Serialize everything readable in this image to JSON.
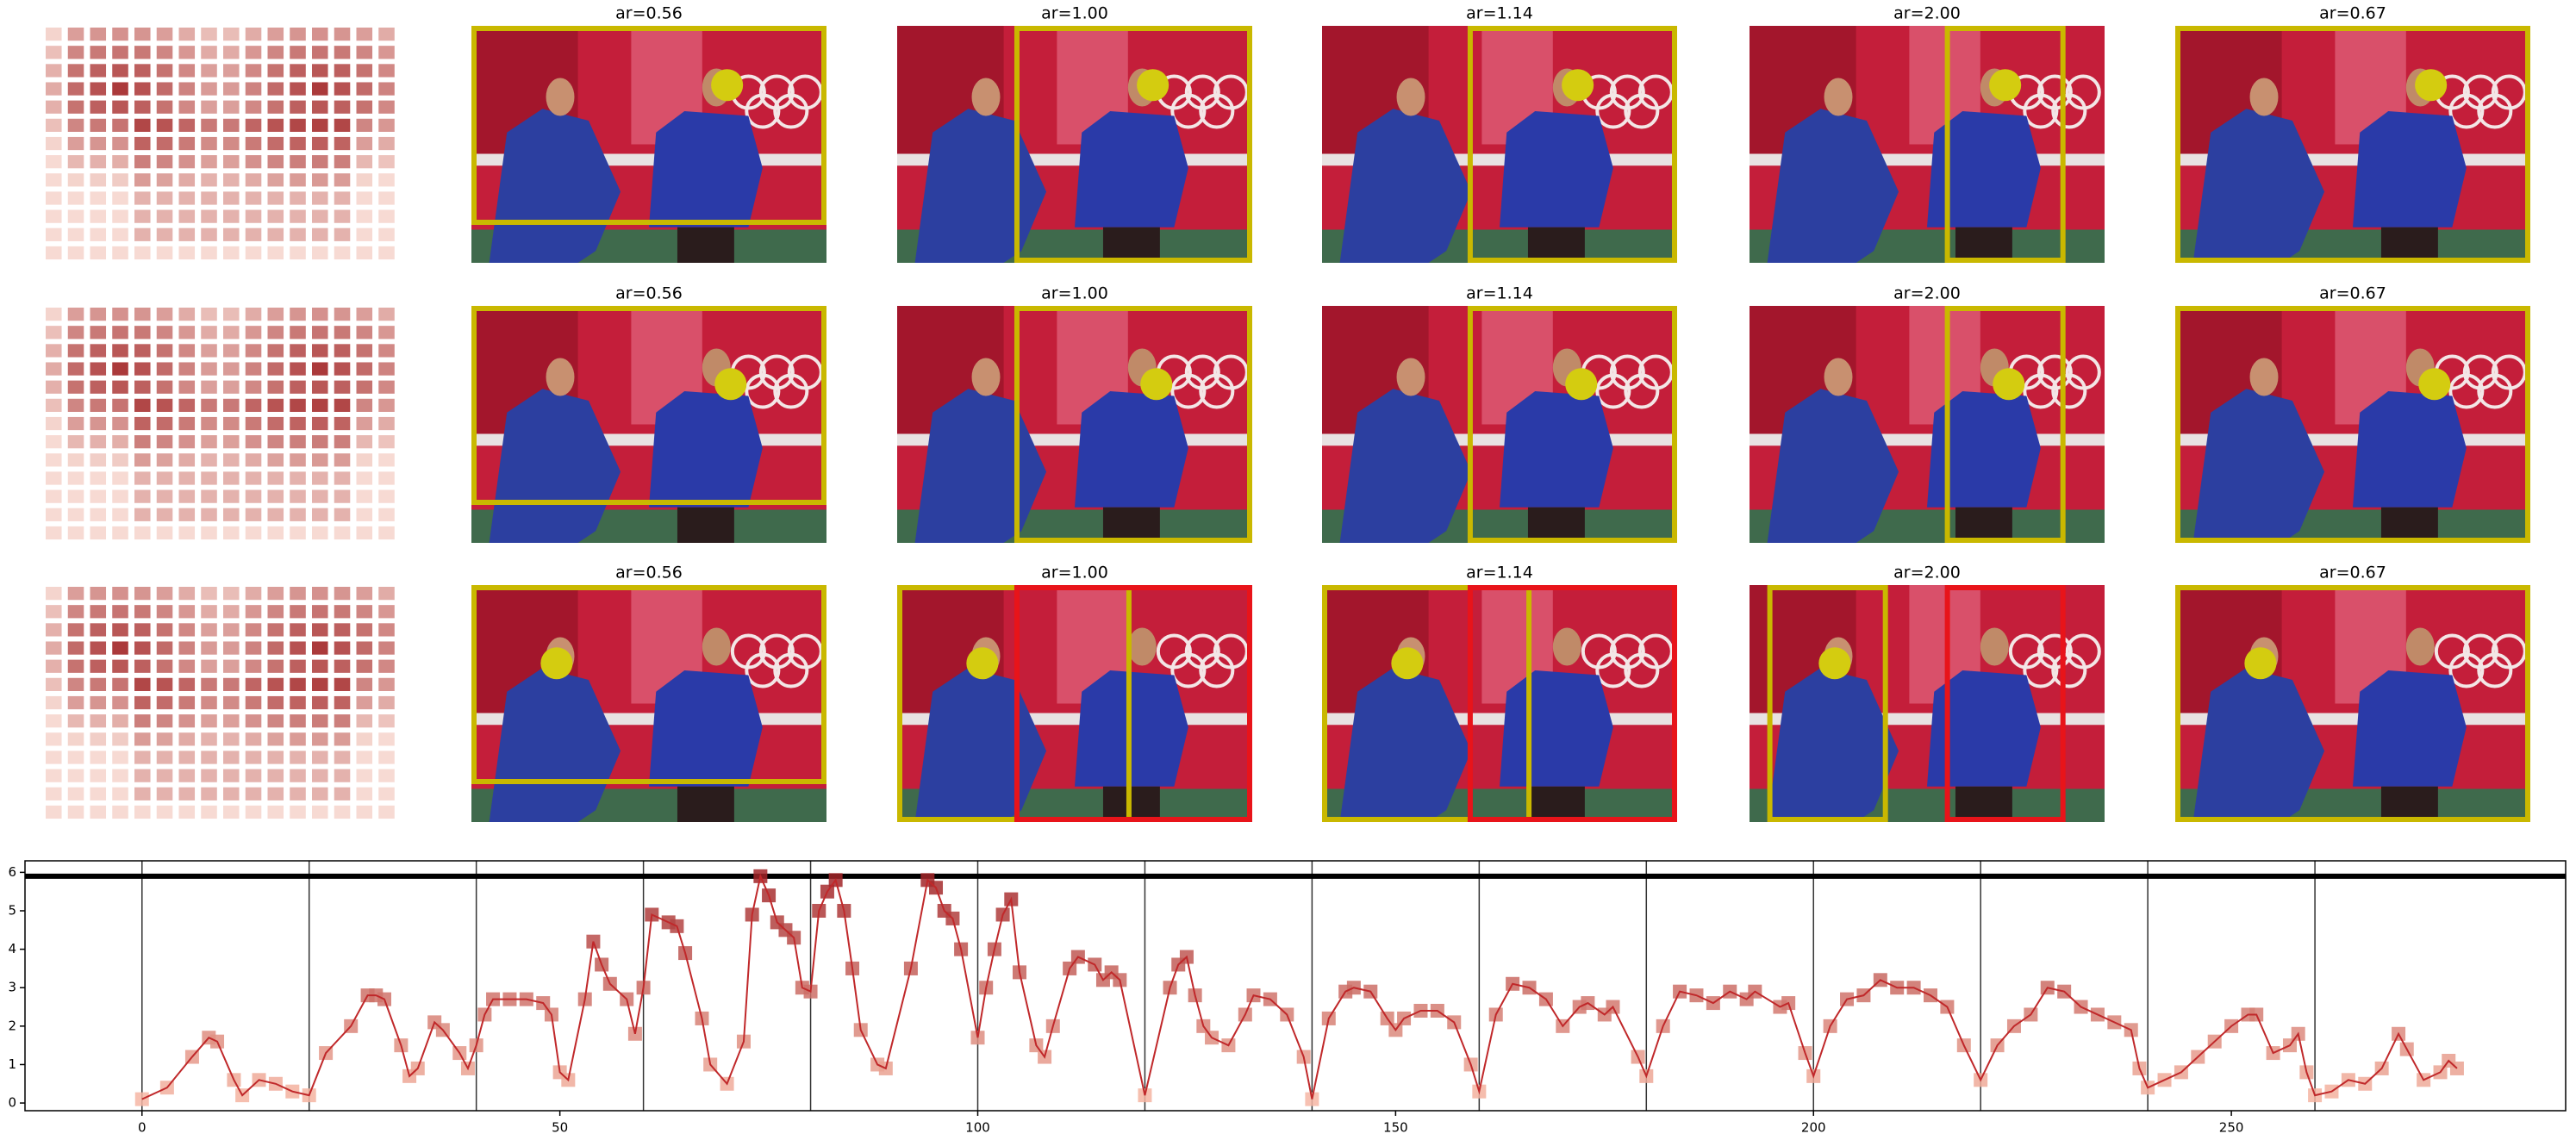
{
  "image_grid": {
    "rows": [
      [
        "ar=0.56",
        "ar=1.00",
        "ar=1.14",
        "ar=2.00",
        "ar=0.67"
      ],
      [
        "ar=0.56",
        "ar=1.00",
        "ar=1.14",
        "ar=2.00",
        "ar=0.67"
      ],
      [
        "ar=0.56",
        "ar=1.00",
        "ar=1.14",
        "ar=2.00",
        "ar=0.67"
      ]
    ]
  },
  "chart_data": {
    "type": "line",
    "x": [
      0,
      3,
      6,
      8,
      9,
      11,
      12,
      14,
      16,
      18,
      20,
      22,
      25,
      27,
      28,
      29,
      31,
      32,
      33,
      35,
      36,
      38,
      39,
      40,
      41,
      42,
      44,
      46,
      48,
      49,
      50,
      51,
      53,
      54,
      55,
      56,
      58,
      59,
      60,
      61,
      63,
      64,
      65,
      67,
      68,
      70,
      72,
      73,
      74,
      75,
      76,
      77,
      78,
      79,
      80,
      81,
      82,
      83,
      84,
      85,
      86,
      88,
      89,
      92,
      94,
      95,
      96,
      97,
      98,
      100,
      101,
      102,
      103,
      104,
      105,
      107,
      108,
      109,
      111,
      112,
      114,
      115,
      116,
      117,
      120,
      123,
      124,
      125,
      126,
      127,
      128,
      130,
      132,
      133,
      135,
      137,
      139,
      140,
      142,
      144,
      145,
      147,
      149,
      150,
      151,
      153,
      155,
      157,
      159,
      160,
      162,
      164,
      166,
      168,
      170,
      172,
      173,
      175,
      176,
      179,
      180,
      182,
      184,
      186,
      188,
      190,
      192,
      193,
      196,
      197,
      199,
      200,
      202,
      204,
      206,
      208,
      210,
      212,
      214,
      216,
      218,
      220,
      222,
      224,
      226,
      228,
      230,
      232,
      234,
      236,
      238,
      239,
      240,
      242,
      244,
      246,
      248,
      250,
      252,
      253,
      255,
      257,
      258,
      259,
      260,
      262,
      264,
      266,
      268,
      270,
      271,
      273,
      275,
      276,
      277
    ],
    "values": [
      0.1,
      0.4,
      1.2,
      1.7,
      1.6,
      0.6,
      0.2,
      0.6,
      0.5,
      0.3,
      0.2,
      1.3,
      2.0,
      2.8,
      2.8,
      2.7,
      1.5,
      0.7,
      0.9,
      2.1,
      1.9,
      1.3,
      0.9,
      1.5,
      2.3,
      2.7,
      2.7,
      2.7,
      2.6,
      2.3,
      0.8,
      0.6,
      2.7,
      4.2,
      3.6,
      3.1,
      2.7,
      1.8,
      3.0,
      4.9,
      4.7,
      4.6,
      3.9,
      2.2,
      1.0,
      0.5,
      1.6,
      4.9,
      5.9,
      5.4,
      4.7,
      4.5,
      4.3,
      3.0,
      2.9,
      5.0,
      5.5,
      5.8,
      5.0,
      3.5,
      1.9,
      1.0,
      0.9,
      3.5,
      5.8,
      5.6,
      5.0,
      4.8,
      4.0,
      1.7,
      3.0,
      4.0,
      4.9,
      5.3,
      3.4,
      1.5,
      1.2,
      2.0,
      3.5,
      3.8,
      3.6,
      3.2,
      3.4,
      3.2,
      0.2,
      3.0,
      3.6,
      3.8,
      2.8,
      2.0,
      1.7,
      1.5,
      2.3,
      2.8,
      2.7,
      2.3,
      1.2,
      0.1,
      2.2,
      2.9,
      3.0,
      2.9,
      2.2,
      1.9,
      2.2,
      2.4,
      2.4,
      2.1,
      1.0,
      0.3,
      2.3,
      3.1,
      3.0,
      2.7,
      2.0,
      2.5,
      2.6,
      2.3,
      2.5,
      1.2,
      0.7,
      2.0,
      2.9,
      2.8,
      2.6,
      2.9,
      2.7,
      2.9,
      2.5,
      2.6,
      1.3,
      0.7,
      2.0,
      2.7,
      2.8,
      3.2,
      3.0,
      3.0,
      2.8,
      2.5,
      1.5,
      0.6,
      1.5,
      2.0,
      2.3,
      3.0,
      2.9,
      2.5,
      2.3,
      2.1,
      1.9,
      0.9,
      0.4,
      0.6,
      0.8,
      1.2,
      1.6,
      2.0,
      2.3,
      2.3,
      1.3,
      1.5,
      1.8,
      0.8,
      0.2,
      0.3,
      0.6,
      0.5,
      0.9,
      1.8,
      1.4,
      0.6,
      0.8,
      1.1,
      0.9
    ],
    "color": "#c0282a",
    "xlim": [
      -14,
      290
    ],
    "ylim": [
      -0.2,
      6.3
    ],
    "xticks": [
      0,
      50,
      100,
      150,
      200,
      250
    ],
    "yticks": [
      0,
      1,
      2,
      3,
      4,
      5,
      6
    ],
    "vlines": [
      0,
      20,
      40,
      60,
      80,
      100,
      120,
      140,
      160,
      180,
      200,
      220,
      240,
      260
    ],
    "hline": 5.9
  }
}
